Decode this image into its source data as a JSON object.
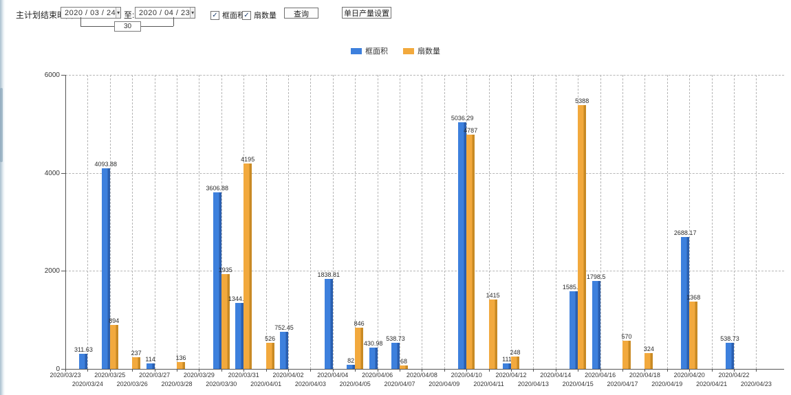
{
  "toolbar": {
    "label": "主计划结束时间:",
    "date_from": "2020 / 03 / 24",
    "to_label": "至:",
    "date_to": "2020 / 04 / 23",
    "interval_days": "30",
    "checkbox_area_label": "框面积",
    "checkbox_fan_label": "扇数量",
    "query_button": "查询",
    "daily_output_button": "单日产量设置"
  },
  "icons": {
    "checkmark": "✓",
    "dropdown_arrow": "▾"
  },
  "colors": {
    "blue": "#3d80dd",
    "blue_dark": "#2a5fb0",
    "orange": "#f2a93d",
    "orange_dark": "#c98a24",
    "grid": "#b5b5b5",
    "axis": "#555555"
  },
  "legend": {
    "items": [
      {
        "label": "框面积",
        "color": "#3d80dd"
      },
      {
        "label": "扇数量",
        "color": "#f2a93d"
      }
    ]
  },
  "chart_data": {
    "type": "bar",
    "title": "",
    "xlabel": "",
    "ylabel": "",
    "ylim": [
      0,
      6000
    ],
    "yticks": [
      0,
      2000,
      4000,
      6000
    ],
    "grid": "dashed",
    "legend_position": "top-center",
    "categories": [
      "2020/03/23",
      "2020/03/24",
      "2020/03/25",
      "2020/03/26",
      "2020/03/27",
      "2020/03/28",
      "2020/03/29",
      "2020/03/30",
      "2020/03/31",
      "2020/04/01",
      "2020/04/02",
      "2020/04/03",
      "2020/04/04",
      "2020/04/05",
      "2020/04/06",
      "2020/04/07",
      "2020/04/08",
      "2020/04/09",
      "2020/04/10",
      "2020/04/11",
      "2020/04/12",
      "2020/04/13",
      "2020/04/14",
      "2020/04/15",
      "2020/04/16",
      "2020/04/17",
      "2020/04/18",
      "2020/04/19",
      "2020/04/20",
      "2020/04/21",
      "2020/04/22",
      "2020/04/23"
    ],
    "series": [
      {
        "name": "框面积",
        "color": "#3d80dd",
        "values": [
          null,
          311.63,
          4093.88,
          null,
          114,
          null,
          null,
          3606.88,
          1344.95,
          null,
          752.45,
          null,
          1838.81,
          82,
          430.98,
          538.73,
          null,
          null,
          5036.29,
          null,
          111,
          null,
          null,
          1585.96,
          1798.5,
          null,
          null,
          null,
          2688.17,
          null,
          538.73,
          null
        ]
      },
      {
        "name": "扇数量",
        "color": "#f2a93d",
        "values": [
          null,
          null,
          894,
          237,
          null,
          136,
          null,
          1935,
          4195,
          526,
          null,
          null,
          null,
          846,
          null,
          68,
          null,
          null,
          4787,
          1415,
          248,
          null,
          null,
          5388,
          null,
          570,
          324,
          null,
          1368,
          null,
          null,
          null
        ]
      }
    ]
  }
}
